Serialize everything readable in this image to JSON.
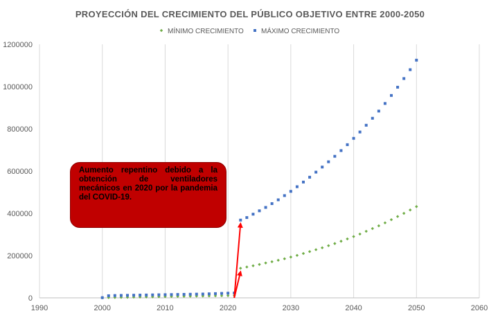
{
  "chart_data": {
    "type": "scatter",
    "title": "PROYECCIÓN DEL CRECIMIENTO DEL PÚBLICO OBJETIVO ENTRE 2000-2050",
    "xlabel": "",
    "ylabel": "",
    "xlim": [
      1990,
      2060
    ],
    "ylim": [
      0,
      1200000
    ],
    "x_ticks": [
      1990,
      2000,
      2010,
      2020,
      2030,
      2040,
      2050,
      2060
    ],
    "y_ticks": [
      0,
      200000,
      400000,
      600000,
      800000,
      1000000,
      1200000
    ],
    "grid": "vertical",
    "legend_position": "top",
    "series": [
      {
        "name": "MÍNIMO CRECIMIENTO",
        "color": "#70ad47",
        "marker": "diamond",
        "x": [
          2000,
          2001,
          2002,
          2003,
          2004,
          2005,
          2006,
          2007,
          2008,
          2009,
          2010,
          2011,
          2012,
          2013,
          2014,
          2015,
          2016,
          2017,
          2018,
          2019,
          2020,
          2021,
          2022,
          2023,
          2024,
          2025,
          2026,
          2027,
          2028,
          2029,
          2030,
          2031,
          2032,
          2033,
          2034,
          2035,
          2036,
          2037,
          2038,
          2039,
          2040,
          2041,
          2042,
          2043,
          2044,
          2045,
          2046,
          2047,
          2048,
          2049,
          2050
        ],
        "y": [
          0,
          1000,
          1500,
          2000,
          2500,
          3000,
          3500,
          4000,
          4500,
          5000,
          5500,
          6000,
          6500,
          7000,
          7500,
          8000,
          8500,
          9000,
          9500,
          10000,
          10500,
          11000,
          140000,
          146000,
          152000,
          158000,
          165000,
          171000,
          178000,
          185000,
          193000,
          201000,
          210000,
          219000,
          228000,
          237000,
          247000,
          257000,
          268000,
          279000,
          290000,
          302000,
          315000,
          328000,
          341000,
          355000,
          370000,
          385000,
          400000,
          416000,
          432000
        ]
      },
      {
        "name": "MÁXIMO CRECIMIENTO",
        "color": "#4472c4",
        "marker": "square",
        "x": [
          2000,
          2001,
          2002,
          2003,
          2004,
          2005,
          2006,
          2007,
          2008,
          2009,
          2010,
          2011,
          2012,
          2013,
          2014,
          2015,
          2016,
          2017,
          2018,
          2019,
          2020,
          2021,
          2022,
          2023,
          2024,
          2025,
          2026,
          2027,
          2028,
          2029,
          2030,
          2031,
          2032,
          2033,
          2034,
          2035,
          2036,
          2037,
          2038,
          2039,
          2040,
          2041,
          2042,
          2043,
          2044,
          2045,
          2046,
          2047,
          2048,
          2049,
          2050
        ],
        "y": [
          1000,
          10000,
          11000,
          11500,
          12000,
          12500,
          13000,
          13500,
          14000,
          14500,
          15000,
          15500,
          16000,
          16500,
          17000,
          17500,
          18000,
          19000,
          20000,
          21000,
          22000,
          23000,
          368000,
          380000,
          396000,
          412000,
          428000,
          446000,
          464000,
          484000,
          504000,
          526000,
          548000,
          571000,
          595000,
          619000,
          644000,
          670000,
          697000,
          725000,
          755000,
          785000,
          817000,
          850000,
          884000,
          920000,
          958000,
          997000,
          1038000,
          1080000,
          1125000
        ]
      }
    ],
    "annotations": {
      "text": "Aumento repentino debido a la obtención de ventiladores mecánicos en 2020 por la pandemia del COVID-19.",
      "box_color": "#c00000",
      "arrow_color": "#ff0000",
      "arrow_origin_x": 2021,
      "arrow_origin_y": 0,
      "arrow_targets": [
        {
          "x": 2022,
          "y": 368000
        },
        {
          "x": 2022,
          "y": 140000
        }
      ]
    }
  }
}
